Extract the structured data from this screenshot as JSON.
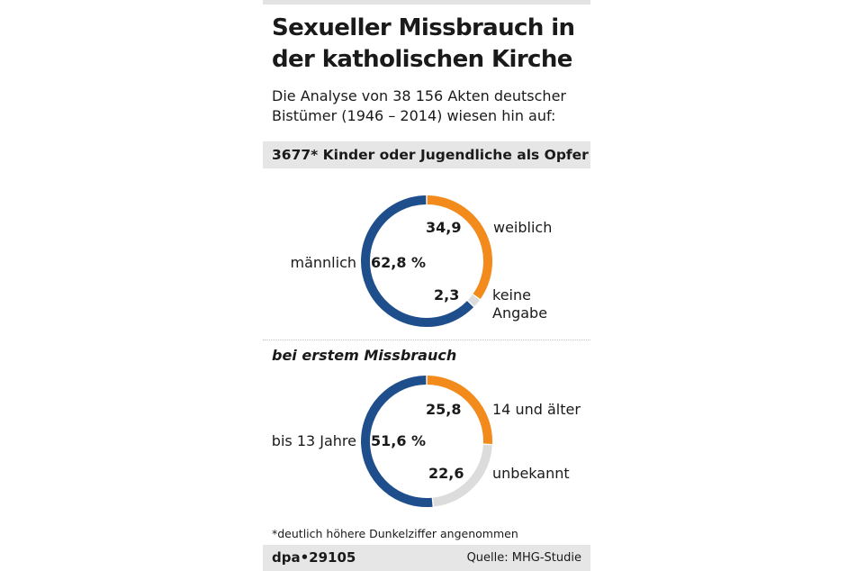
{
  "title_line1": "Sexueller Missbrauch in",
  "title_line2": "der katholischen Kirche",
  "subtitle_line1": "Die Analyse von 38 156 Akten deutscher",
  "subtitle_line2": "Bistümer (1946 – 2014) wiesen hin auf:",
  "headline": "3677* Kinder oder Jugendliche als Opfer",
  "section2_label": "bei erstem Missbrauch",
  "footnote": "*deutlich höhere Dunkelziffer angenommen",
  "agency": "dpa•29105",
  "source": "Quelle: MHG-Studie",
  "colors": {
    "blue": "#1f4e8c",
    "orange": "#f28a1c",
    "gray": "#dcdcdc"
  },
  "chart_data": [
    {
      "type": "pie",
      "unit": "%",
      "series": [
        {
          "name": "weiblich",
          "value": 34.9,
          "value_label": "34,9",
          "color": "#f28a1c"
        },
        {
          "name": "keine Angabe",
          "value": 2.3,
          "value_label": "2,3",
          "color": "#dcdcdc"
        },
        {
          "name": "männlich",
          "value": 62.8,
          "value_label": "62,8 %",
          "color": "#1f4e8c"
        }
      ]
    },
    {
      "type": "pie",
      "unit": "%",
      "series": [
        {
          "name": "14 und älter",
          "value": 25.8,
          "value_label": "25,8",
          "color": "#f28a1c"
        },
        {
          "name": "unbekannt",
          "value": 22.6,
          "value_label": "22,6",
          "color": "#dcdcdc"
        },
        {
          "name": "bis 13 Jahre",
          "value": 51.6,
          "value_label": "51,6 %",
          "color": "#1f4e8c"
        }
      ]
    }
  ]
}
